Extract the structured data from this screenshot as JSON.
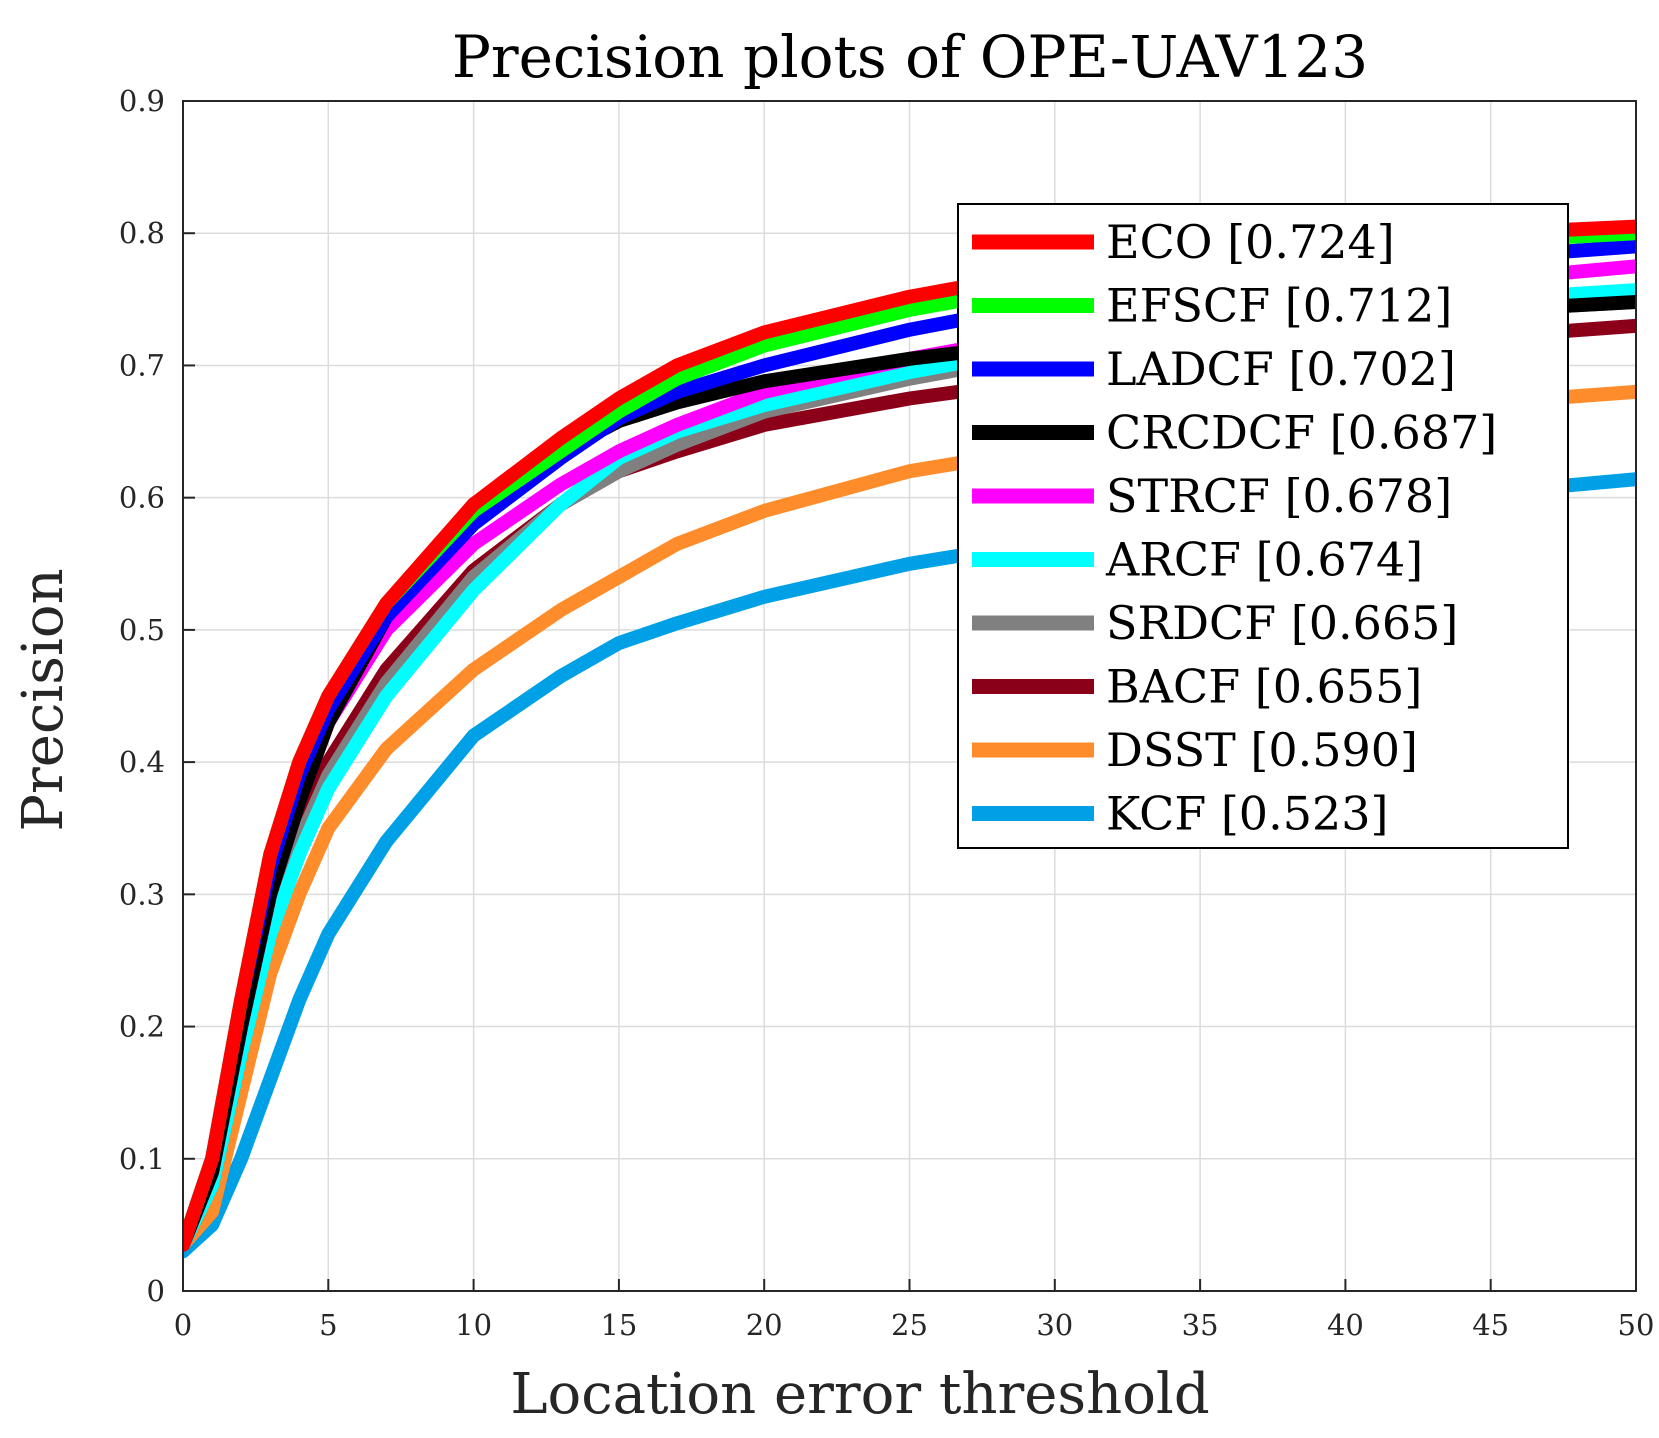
{
  "chart_data": {
    "type": "line",
    "title": "Precision plots of OPE-UAV123",
    "xlabel": "Location error threshold",
    "ylabel": "Precision",
    "xlim": [
      0,
      50
    ],
    "ylim": [
      0,
      0.9
    ],
    "xticks": [
      0,
      5,
      10,
      15,
      20,
      25,
      30,
      35,
      40,
      45,
      50
    ],
    "yticks": [
      0,
      0.1,
      0.2,
      0.3,
      0.4,
      0.5,
      0.6,
      0.7,
      0.8,
      0.9
    ],
    "xtick_labels": [
      "0",
      "5",
      "10",
      "15",
      "20",
      "25",
      "30",
      "35",
      "40",
      "45",
      "50"
    ],
    "ytick_labels": [
      "0",
      "0.1",
      "0.2",
      "0.3",
      "0.4",
      "0.5",
      "0.6",
      "0.7",
      "0.8",
      "0.9"
    ],
    "grid": true,
    "legend_position": "top-right",
    "series": [
      {
        "name": "ECO [0.724]",
        "color": "#ff0000",
        "x": [
          0,
          1,
          2,
          3,
          4,
          5,
          7,
          10,
          13,
          15,
          17,
          20,
          25,
          30,
          35,
          40,
          45,
          50
        ],
        "values": [
          0.035,
          0.1,
          0.22,
          0.33,
          0.4,
          0.45,
          0.52,
          0.595,
          0.645,
          0.675,
          0.7,
          0.725,
          0.752,
          0.772,
          0.785,
          0.795,
          0.8,
          0.805
        ]
      },
      {
        "name": "EFSCF [0.712]",
        "color": "#00ff00",
        "x": [
          0,
          1,
          2,
          3,
          4,
          5,
          7,
          10,
          13,
          15,
          17,
          20,
          25,
          30,
          35,
          40,
          45,
          50
        ],
        "values": [
          0.035,
          0.1,
          0.22,
          0.33,
          0.4,
          0.45,
          0.52,
          0.59,
          0.635,
          0.665,
          0.69,
          0.715,
          0.742,
          0.762,
          0.776,
          0.787,
          0.794,
          0.8
        ]
      },
      {
        "name": "LADCF [0.702]",
        "color": "#0000ff",
        "x": [
          0,
          1,
          2,
          3,
          4,
          5,
          7,
          10,
          13,
          15,
          17,
          20,
          25,
          30,
          35,
          40,
          45,
          50
        ],
        "values": [
          0.035,
          0.1,
          0.22,
          0.32,
          0.39,
          0.44,
          0.51,
          0.58,
          0.63,
          0.66,
          0.68,
          0.7,
          0.727,
          0.748,
          0.762,
          0.773,
          0.782,
          0.79
        ]
      },
      {
        "name": "CRCDCF [0.687]",
        "color": "#000000",
        "x": [
          0,
          1,
          2,
          3,
          4,
          5,
          7,
          10,
          13,
          15,
          17,
          20,
          25,
          30,
          35,
          40,
          45,
          50
        ],
        "values": [
          0.035,
          0.09,
          0.2,
          0.3,
          0.37,
          0.43,
          0.51,
          0.595,
          0.635,
          0.658,
          0.672,
          0.688,
          0.705,
          0.718,
          0.728,
          0.736,
          0.742,
          0.748
        ]
      },
      {
        "name": "STRCF [0.678]",
        "color": "#ff00ff",
        "x": [
          0,
          1,
          2,
          3,
          4,
          5,
          7,
          10,
          13,
          15,
          17,
          20,
          25,
          30,
          35,
          40,
          45,
          50
        ],
        "values": [
          0.035,
          0.09,
          0.2,
          0.3,
          0.37,
          0.43,
          0.5,
          0.565,
          0.61,
          0.635,
          0.655,
          0.68,
          0.705,
          0.725,
          0.74,
          0.755,
          0.765,
          0.775
        ]
      },
      {
        "name": "ARCF [0.674]",
        "color": "#00ffff",
        "x": [
          0,
          1,
          2,
          3,
          4,
          5,
          7,
          10,
          13,
          15,
          17,
          20,
          25,
          30,
          35,
          40,
          45,
          50
        ],
        "values": [
          0.035,
          0.08,
          0.18,
          0.27,
          0.33,
          0.38,
          0.45,
          0.53,
          0.595,
          0.63,
          0.65,
          0.67,
          0.695,
          0.715,
          0.73,
          0.742,
          0.75,
          0.757
        ]
      },
      {
        "name": "SRDCF [0.665]",
        "color": "#808080",
        "x": [
          0,
          1,
          2,
          3,
          4,
          5,
          7,
          10,
          13,
          15,
          17,
          20,
          25,
          30,
          35,
          40,
          45,
          50
        ],
        "values": [
          0.035,
          0.08,
          0.18,
          0.27,
          0.34,
          0.39,
          0.46,
          0.54,
          0.595,
          0.62,
          0.64,
          0.665,
          0.69,
          0.71,
          0.724,
          0.735,
          0.742,
          0.748
        ]
      },
      {
        "name": "BACF [0.655]",
        "color": "#8b0018",
        "x": [
          0,
          1,
          2,
          3,
          4,
          5,
          7,
          10,
          13,
          15,
          17,
          20,
          25,
          30,
          35,
          40,
          45,
          50
        ],
        "values": [
          0.035,
          0.08,
          0.18,
          0.28,
          0.35,
          0.4,
          0.47,
          0.545,
          0.595,
          0.62,
          0.635,
          0.655,
          0.675,
          0.69,
          0.703,
          0.713,
          0.722,
          0.73
        ]
      },
      {
        "name": "DSST [0.590]",
        "color": "#ff8c2a",
        "x": [
          0,
          1,
          2,
          3,
          4,
          5,
          7,
          10,
          13,
          15,
          17,
          20,
          25,
          30,
          35,
          40,
          45,
          50
        ],
        "values": [
          0.035,
          0.06,
          0.15,
          0.24,
          0.3,
          0.35,
          0.41,
          0.47,
          0.515,
          0.54,
          0.565,
          0.59,
          0.62,
          0.638,
          0.652,
          0.663,
          0.672,
          0.68
        ]
      },
      {
        "name": "KCF [0.523]",
        "color": "#00a0e6",
        "x": [
          0,
          1,
          2,
          3,
          4,
          5,
          7,
          10,
          13,
          15,
          17,
          20,
          25,
          30,
          35,
          40,
          45,
          50
        ],
        "values": [
          0.03,
          0.05,
          0.1,
          0.16,
          0.22,
          0.27,
          0.34,
          0.42,
          0.465,
          0.49,
          0.505,
          0.525,
          0.55,
          0.568,
          0.582,
          0.594,
          0.604,
          0.614
        ]
      }
    ]
  }
}
